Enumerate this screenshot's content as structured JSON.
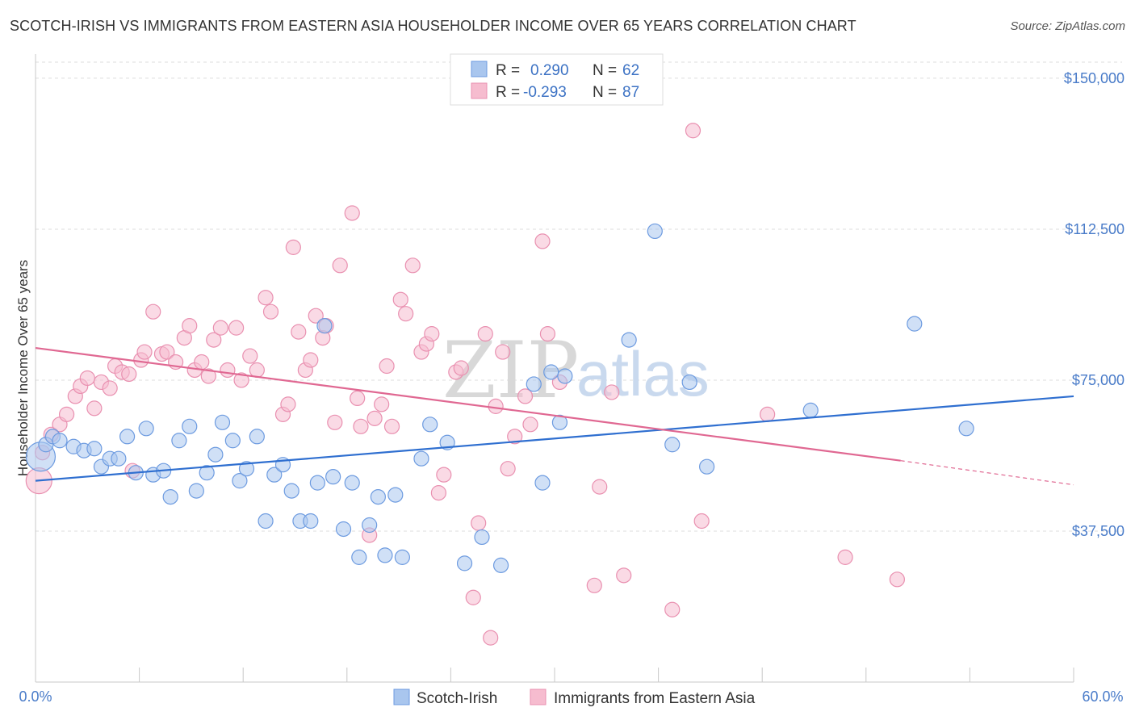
{
  "header": {
    "title": "SCOTCH-IRISH VS IMMIGRANTS FROM EASTERN ASIA HOUSEHOLDER INCOME OVER 65 YEARS CORRELATION CHART",
    "source": "Source: ZipAtlas.com"
  },
  "watermark": {
    "part1": "ZIP",
    "part2": "atlas"
  },
  "legend": {
    "r_label": "R =",
    "n_label": "N =",
    "series": [
      {
        "r": "0.290",
        "n": "62"
      },
      {
        "r": "-0.293",
        "n": "87"
      }
    ]
  },
  "colors": {
    "blue_fill": "#a9c6ee",
    "blue_stroke": "#6d9be0",
    "blue_line": "#2f6fd0",
    "pink_fill": "#f6bccf",
    "pink_stroke": "#e990b0",
    "pink_line": "#e06892",
    "grid": "#dddddd",
    "axis": "#c8c8c8"
  },
  "chart_data": {
    "type": "scatter",
    "title": "SCOTCH-IRISH VS IMMIGRANTS FROM EASTERN ASIA HOUSEHOLDER INCOME OVER 65 YEARS CORRELATION CHART",
    "xlabel": "",
    "ylabel": "Householder Income Over 65 years",
    "xlim": [
      0,
      60
    ],
    "ylim": [
      0,
      156000
    ],
    "x_tick_labels": [
      "0.0%",
      "60.0%"
    ],
    "y_ticks": [
      37500,
      75000,
      112500,
      150000
    ],
    "y_tick_labels": [
      "$37,500",
      "$75,000",
      "$112,500",
      "$150,000"
    ],
    "grid": true,
    "legend_position": "top-center",
    "series": [
      {
        "name": "Scotch-Irish",
        "color": "#a9c6ee",
        "trend": {
          "x": [
            0,
            60
          ],
          "y": [
            50000,
            71000
          ]
        },
        "points": [
          [
            0.3,
            56000
          ],
          [
            0.6,
            59000
          ],
          [
            1.0,
            61000
          ],
          [
            1.4,
            60000
          ],
          [
            2.2,
            58500
          ],
          [
            2.8,
            57500
          ],
          [
            3.4,
            58000
          ],
          [
            3.8,
            53500
          ],
          [
            4.3,
            55500
          ],
          [
            4.8,
            55500
          ],
          [
            5.3,
            61000
          ],
          [
            5.8,
            52000
          ],
          [
            6.4,
            63000
          ],
          [
            6.8,
            51500
          ],
          [
            7.4,
            52500
          ],
          [
            7.8,
            46000
          ],
          [
            8.3,
            60000
          ],
          [
            8.9,
            63500
          ],
          [
            9.3,
            47500
          ],
          [
            9.9,
            52000
          ],
          [
            10.4,
            56500
          ],
          [
            10.8,
            64500
          ],
          [
            11.4,
            60000
          ],
          [
            11.8,
            50000
          ],
          [
            12.2,
            53000
          ],
          [
            12.8,
            61000
          ],
          [
            13.3,
            40000
          ],
          [
            13.8,
            51500
          ],
          [
            14.3,
            54000
          ],
          [
            14.8,
            47500
          ],
          [
            15.3,
            40000
          ],
          [
            15.9,
            40000
          ],
          [
            16.3,
            49500
          ],
          [
            16.7,
            88500
          ],
          [
            17.2,
            51000
          ],
          [
            17.8,
            38000
          ],
          [
            18.3,
            49500
          ],
          [
            18.7,
            31000
          ],
          [
            19.3,
            39000
          ],
          [
            19.8,
            46000
          ],
          [
            20.2,
            31500
          ],
          [
            20.8,
            46500
          ],
          [
            21.2,
            31000
          ],
          [
            22.3,
            55500
          ],
          [
            22.8,
            64000
          ],
          [
            23.8,
            59500
          ],
          [
            24.8,
            29500
          ],
          [
            25.8,
            36000
          ],
          [
            26.9,
            29000
          ],
          [
            28.8,
            74000
          ],
          [
            29.3,
            49500
          ],
          [
            29.8,
            77000
          ],
          [
            30.3,
            64500
          ],
          [
            30.6,
            76000
          ],
          [
            34.3,
            85000
          ],
          [
            35.8,
            112000
          ],
          [
            36.8,
            59000
          ],
          [
            37.8,
            74500
          ],
          [
            38.8,
            53500
          ],
          [
            44.8,
            67500
          ],
          [
            50.8,
            89000
          ],
          [
            53.8,
            63000
          ]
        ]
      },
      {
        "name": "Immigrants from Eastern Asia",
        "color": "#f6bccf",
        "trend": {
          "x": [
            0,
            50
          ],
          "y": [
            83000,
            55000
          ],
          "dash_extension": {
            "x": [
              50,
              60
            ],
            "y": [
              55000,
              49000
            ]
          }
        },
        "points": [
          [
            0.2,
            50000
          ],
          [
            0.4,
            57000
          ],
          [
            0.9,
            61500
          ],
          [
            1.4,
            64000
          ],
          [
            1.8,
            66500
          ],
          [
            2.3,
            71000
          ],
          [
            2.6,
            73500
          ],
          [
            3.0,
            75500
          ],
          [
            3.4,
            68000
          ],
          [
            3.8,
            74500
          ],
          [
            4.3,
            73000
          ],
          [
            4.6,
            78500
          ],
          [
            5.0,
            77000
          ],
          [
            5.4,
            76500
          ],
          [
            5.6,
            52500
          ],
          [
            6.1,
            80000
          ],
          [
            6.3,
            82000
          ],
          [
            6.8,
            92000
          ],
          [
            7.3,
            81500
          ],
          [
            7.6,
            82000
          ],
          [
            8.1,
            79500
          ],
          [
            8.6,
            85500
          ],
          [
            8.9,
            88500
          ],
          [
            9.2,
            77500
          ],
          [
            9.6,
            79500
          ],
          [
            10.0,
            76000
          ],
          [
            10.3,
            85000
          ],
          [
            10.7,
            88000
          ],
          [
            11.1,
            77500
          ],
          [
            11.6,
            88000
          ],
          [
            11.9,
            75000
          ],
          [
            12.4,
            81000
          ],
          [
            12.8,
            77500
          ],
          [
            13.3,
            95500
          ],
          [
            13.6,
            92000
          ],
          [
            14.3,
            66500
          ],
          [
            14.6,
            69000
          ],
          [
            14.9,
            108000
          ],
          [
            15.2,
            87000
          ],
          [
            15.6,
            77500
          ],
          [
            15.9,
            80000
          ],
          [
            16.2,
            91000
          ],
          [
            16.6,
            85500
          ],
          [
            16.8,
            88500
          ],
          [
            17.3,
            64500
          ],
          [
            17.6,
            103500
          ],
          [
            18.3,
            116500
          ],
          [
            18.6,
            70500
          ],
          [
            18.8,
            63500
          ],
          [
            19.3,
            36500
          ],
          [
            19.6,
            65500
          ],
          [
            20.0,
            69000
          ],
          [
            20.3,
            78500
          ],
          [
            20.6,
            63500
          ],
          [
            21.1,
            95000
          ],
          [
            21.4,
            91500
          ],
          [
            21.8,
            103500
          ],
          [
            22.3,
            82000
          ],
          [
            22.6,
            84000
          ],
          [
            22.9,
            86500
          ],
          [
            23.3,
            47000
          ],
          [
            23.6,
            51500
          ],
          [
            24.3,
            77000
          ],
          [
            24.6,
            78000
          ],
          [
            25.3,
            21000
          ],
          [
            25.6,
            39500
          ],
          [
            26.0,
            86500
          ],
          [
            26.3,
            11000
          ],
          [
            26.6,
            68500
          ],
          [
            27.0,
            82000
          ],
          [
            27.3,
            53000
          ],
          [
            27.7,
            61000
          ],
          [
            28.3,
            71000
          ],
          [
            28.6,
            64000
          ],
          [
            29.3,
            109500
          ],
          [
            29.6,
            86500
          ],
          [
            30.3,
            74500
          ],
          [
            32.3,
            24000
          ],
          [
            32.6,
            48500
          ],
          [
            33.3,
            72000
          ],
          [
            34.0,
            26500
          ],
          [
            36.8,
            18000
          ],
          [
            38.0,
            137000
          ],
          [
            38.5,
            40000
          ],
          [
            42.3,
            66500
          ],
          [
            46.8,
            31000
          ],
          [
            49.8,
            25500
          ]
        ]
      }
    ]
  },
  "bottom_legend": [
    {
      "label": "Scotch-Irish"
    },
    {
      "label": "Immigrants from Eastern Asia"
    }
  ]
}
